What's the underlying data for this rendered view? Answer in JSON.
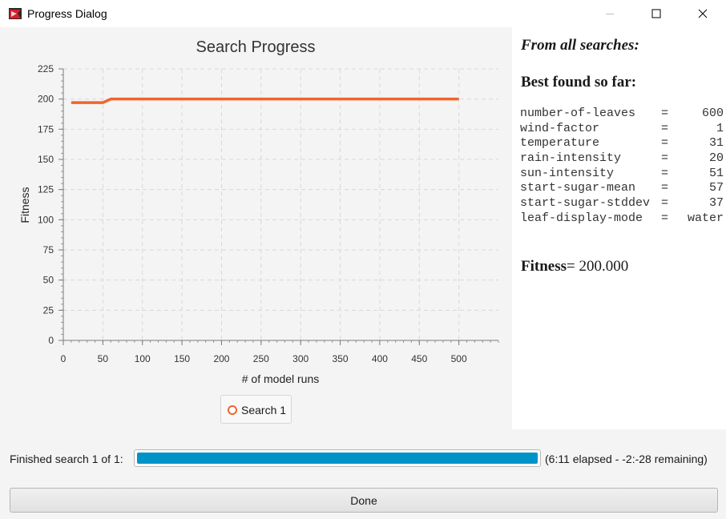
{
  "window": {
    "title": "Progress Dialog",
    "buttons": {
      "minimize": "minimize",
      "maximize": "maximize",
      "close": "close"
    }
  },
  "chart_data": {
    "type": "line",
    "title": "Search Progress",
    "xlabel": "# of model runs",
    "ylabel": "Fitness",
    "xlim": [
      0,
      550
    ],
    "ylim": [
      0,
      225
    ],
    "xticks": [
      0,
      50,
      100,
      150,
      200,
      250,
      300,
      350,
      400,
      450,
      500
    ],
    "yticks": [
      0,
      25,
      50,
      75,
      100,
      125,
      150,
      175,
      200,
      225
    ],
    "grid": true,
    "legend_position": "bottom",
    "series": [
      {
        "name": "Search 1",
        "color": "#f0642d",
        "x": [
          10,
          50,
          60,
          100,
          200,
          300,
          400,
          500
        ],
        "y": [
          197,
          197,
          200,
          200,
          200,
          200,
          200,
          200
        ]
      }
    ]
  },
  "info": {
    "heading_all": "From all searches:",
    "heading_best": "Best found so far:",
    "params": [
      {
        "name": "number-of-leaves",
        "eq": "=",
        "value": "600"
      },
      {
        "name": "wind-factor",
        "eq": "=",
        "value": "1"
      },
      {
        "name": "temperature",
        "eq": "=",
        "value": "31"
      },
      {
        "name": "rain-intensity",
        "eq": "=",
        "value": "20"
      },
      {
        "name": "sun-intensity",
        "eq": "=",
        "value": "51"
      },
      {
        "name": "start-sugar-mean",
        "eq": "=",
        "value": "57"
      },
      {
        "name": "start-sugar-stddev",
        "eq": "=",
        "value": "37"
      },
      {
        "name": "leaf-display-mode",
        "eq": "=",
        "value": "water"
      }
    ],
    "fitness_label": "Fitness",
    "fitness_value": "= 200.000"
  },
  "progress": {
    "label": "Finished search 1 of 1:",
    "fraction": 1.0,
    "status": "(6:11 elapsed - -2:-28 remaining)"
  },
  "done_button": {
    "label": "Done"
  },
  "colors": {
    "accent": "#f0642d",
    "progress": "#0093c8"
  }
}
